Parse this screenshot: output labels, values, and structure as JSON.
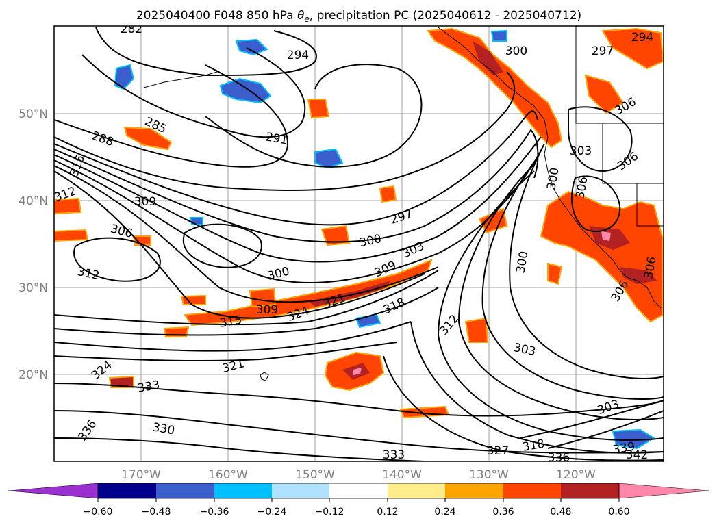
{
  "title_main": "2025040400 F048 850 hPa ",
  "title_theta": "θ",
  "title_sub": "e",
  "title_rest": ", precipitation PC (2025040612 - 2025040712)",
  "lat_labels": [
    "50°N",
    "40°N",
    "30°N",
    "20°N"
  ],
  "lon_labels": [
    "170°W",
    "160°W",
    "150°W",
    "140°W",
    "130°W",
    "120°W"
  ],
  "colorbar": {
    "colors": [
      "#9b30d0",
      "#00008b",
      "#3a5fcd",
      "#00bfff",
      "#b0e2ff",
      "#ffffff",
      "#ffec8b",
      "#ffa500",
      "#ff4500",
      "#b22222",
      "#ff88aa"
    ],
    "tick_labels": [
      "−0.60",
      "−0.48",
      "−0.36",
      "−0.24",
      "−0.12",
      "0.12",
      "0.24",
      "0.36",
      "0.48",
      "0.60"
    ]
  },
  "contour_labels": [
    "282",
    "294",
    "300",
    "297",
    "294",
    "285",
    "288",
    "291",
    "306",
    "303",
    "306",
    "315",
    "312",
    "309",
    "306",
    "300",
    "297",
    "300",
    "303",
    "312",
    "300",
    "309",
    "306",
    "318",
    "321",
    "324",
    "315",
    "309",
    "324",
    "312",
    "303",
    "321",
    "333",
    "336",
    "330",
    "333",
    "327",
    "318",
    "336",
    "339",
    "342",
    "300",
    "306",
    "306",
    "303"
  ],
  "map_colors": {
    "precip_pos_light": "#ffec8b",
    "precip_pos_mid": "#ffa500",
    "precip_pos_high": "#ff4500",
    "precip_pos_vhigh": "#b22222",
    "precip_pos_max": "#ff88aa",
    "precip_neg_light": "#b0e2ff",
    "precip_neg_mid": "#00bfff",
    "precip_neg_high": "#3a5fcd",
    "precip_neg_vhigh": "#00008b",
    "contour": "#000000",
    "grid": "#a0a0a0"
  }
}
